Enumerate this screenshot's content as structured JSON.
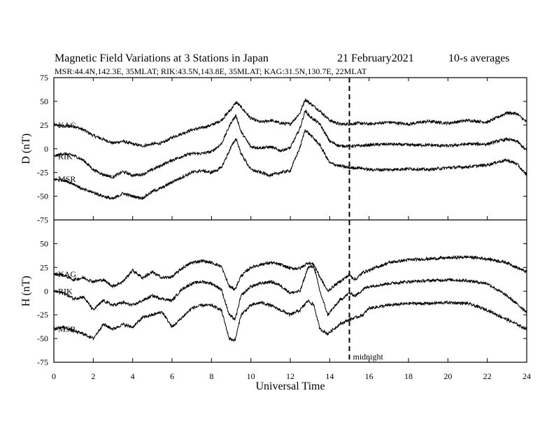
{
  "chart_data": {
    "type": "line",
    "title": "Magnetic Field Variations at 3 Stations in Japan",
    "date": "21 February2021",
    "averaging": "10-s averages",
    "subtitle": "MSR:44.4N,142.3E, 35MLAT;   RIK:43.5N,143.8E, 35MLAT;   KAG:31.5N,130.7E, 22MLAT",
    "xlabel": "Universal Time",
    "xlim": [
      0,
      24
    ],
    "xticks": [
      0,
      2,
      4,
      6,
      8,
      10,
      12,
      14,
      16,
      18,
      20,
      22,
      24
    ],
    "marker": {
      "x": 15,
      "label": "midnight"
    },
    "panels": [
      {
        "id": "D",
        "ylabel": "D (nT)",
        "ylim": [
          -75,
          75
        ],
        "yticks": [
          75,
          50,
          25,
          0,
          -25,
          -50,
          -75
        ],
        "series": [
          {
            "name": "KAG",
            "x": [
              0,
              0.5,
              1,
              1.5,
              2,
              2.5,
              3,
              3.5,
              4,
              4.5,
              5,
              5.5,
              6,
              6.5,
              7,
              7.5,
              8,
              8.5,
              9,
              9.25,
              9.5,
              10,
              10.5,
              11,
              11.5,
              12,
              12.5,
              12.75,
              13,
              13.5,
              14,
              14.5,
              15,
              15.5,
              16,
              17,
              18,
              19,
              20,
              21,
              22,
              22.5,
              23,
              23.5,
              24
            ],
            "values": [
              25,
              24,
              24,
              20,
              14,
              10,
              6,
              8,
              5,
              3,
              5,
              6,
              12,
              16,
              20,
              22,
              25,
              30,
              42,
              49,
              44,
              32,
              28,
              30,
              27,
              26,
              38,
              52,
              48,
              40,
              30,
              26,
              26,
              27,
              26,
              28,
              26,
              29,
              27,
              30,
              28,
              33,
              38,
              37,
              28
            ]
          },
          {
            "name": "RIK",
            "x": [
              0,
              0.5,
              1,
              1.5,
              2,
              2.5,
              3,
              3.5,
              4,
              4.5,
              5,
              5.5,
              6,
              6.5,
              7,
              7.5,
              8,
              8.5,
              9,
              9.25,
              9.5,
              10,
              10.5,
              11,
              11.5,
              12,
              12.5,
              12.75,
              13,
              13.5,
              14,
              14.5,
              15,
              15.5,
              16,
              17,
              18,
              19,
              20,
              21,
              22,
              22.5,
              23,
              23.5,
              24
            ],
            "values": [
              -8,
              -5,
              -7,
              -12,
              -22,
              -27,
              -30,
              -24,
              -28,
              -27,
              -22,
              -17,
              -12,
              -8,
              -5,
              -5,
              -3,
              5,
              28,
              35,
              18,
              2,
              1,
              2,
              -2,
              1,
              22,
              40,
              34,
              26,
              8,
              3,
              3,
              3,
              4,
              5,
              4,
              4,
              3,
              5,
              5,
              8,
              10,
              8,
              -2
            ]
          },
          {
            "name": "MSR",
            "x": [
              0,
              0.5,
              1,
              1.5,
              2,
              2.5,
              3,
              3.5,
              4,
              4.5,
              5,
              5.5,
              6,
              6.5,
              7,
              7.5,
              8,
              8.5,
              9,
              9.25,
              9.5,
              10,
              10.5,
              11,
              11.5,
              12,
              12.5,
              12.75,
              13,
              13.5,
              14,
              14.5,
              15,
              15.5,
              16,
              17,
              18,
              19,
              20,
              21,
              22,
              22.5,
              23,
              23.5,
              24
            ],
            "values": [
              -32,
              -33,
              -37,
              -43,
              -46,
              -50,
              -53,
              -47,
              -50,
              -52,
              -45,
              -41,
              -35,
              -30,
              -25,
              -23,
              -25,
              -20,
              2,
              11,
              -5,
              -22,
              -25,
              -28,
              -25,
              -23,
              2,
              20,
              15,
              4,
              -15,
              -18,
              -20,
              -20,
              -22,
              -22,
              -21,
              -22,
              -20,
              -19,
              -17,
              -14,
              -12,
              -16,
              -28
            ]
          }
        ]
      },
      {
        "id": "H",
        "ylabel": "H (nT)",
        "ylim": [
          -75,
          75
        ],
        "yticks": [
          75,
          50,
          25,
          0,
          -25,
          -50,
          -75
        ],
        "series": [
          {
            "name": "KAG",
            "x": [
              0,
              0.5,
              1,
              1.5,
              2,
              2.5,
              3,
              3.5,
              4,
              4.5,
              5,
              5.5,
              6,
              6.5,
              7,
              7.5,
              8,
              8.5,
              8.9,
              9.2,
              9.5,
              10,
              10.5,
              11,
              11.5,
              12,
              12.5,
              12.9,
              13.2,
              13.5,
              13.9,
              14.5,
              15,
              15.3,
              15.7,
              16,
              17,
              18,
              19,
              20,
              21,
              22,
              23,
              24
            ],
            "values": [
              18,
              17,
              12,
              14,
              10,
              12,
              5,
              10,
              22,
              14,
              20,
              14,
              15,
              24,
              30,
              32,
              30,
              26,
              5,
              2,
              16,
              25,
              28,
              30,
              28,
              24,
              24,
              30,
              28,
              15,
              0,
              10,
              17,
              12,
              20,
              22,
              30,
              33,
              34,
              35,
              36,
              34,
              30,
              20
            ]
          },
          {
            "name": "RIK",
            "x": [
              0,
              0.5,
              1,
              1.5,
              2,
              2.5,
              3,
              3.5,
              4,
              4.5,
              5,
              5.5,
              6,
              6.5,
              7,
              7.5,
              8,
              8.5,
              8.9,
              9.2,
              9.5,
              10,
              10.5,
              11,
              11.5,
              12,
              12.5,
              12.9,
              13.2,
              13.5,
              13.9,
              14.5,
              15,
              15.3,
              15.7,
              16,
              17,
              18,
              19,
              20,
              21,
              22,
              23,
              24
            ],
            "values": [
              0,
              -2,
              -8,
              -6,
              -20,
              -10,
              -15,
              -12,
              -15,
              -10,
              -5,
              -8,
              -10,
              2,
              8,
              10,
              8,
              2,
              -25,
              -30,
              -5,
              5,
              8,
              10,
              6,
              -2,
              0,
              25,
              26,
              0,
              -25,
              -10,
              -2,
              -5,
              2,
              5,
              8,
              10,
              11,
              12,
              11,
              8,
              -5,
              -22
            ]
          },
          {
            "name": "MSR",
            "x": [
              0,
              0.5,
              1,
              1.5,
              2,
              2.5,
              3,
              3.5,
              4,
              4.5,
              5,
              5.5,
              6,
              6.5,
              7,
              7.5,
              8,
              8.5,
              8.9,
              9.2,
              9.5,
              10,
              10.5,
              11,
              11.5,
              12,
              12.5,
              12.9,
              13.2,
              13.5,
              13.9,
              14.5,
              15,
              15.3,
              15.7,
              16,
              17,
              18,
              19,
              20,
              21,
              22,
              23,
              24
            ],
            "values": [
              -40,
              -38,
              -42,
              -45,
              -50,
              -35,
              -40,
              -35,
              -38,
              -28,
              -25,
              -22,
              -38,
              -28,
              -18,
              -15,
              -15,
              -20,
              -50,
              -52,
              -25,
              -15,
              -12,
              -15,
              -20,
              -25,
              -20,
              -10,
              -15,
              -40,
              -45,
              -35,
              -30,
              -28,
              -25,
              -18,
              -15,
              -13,
              -13,
              -12,
              -13,
              -20,
              -30,
              -40
            ]
          }
        ]
      }
    ]
  }
}
